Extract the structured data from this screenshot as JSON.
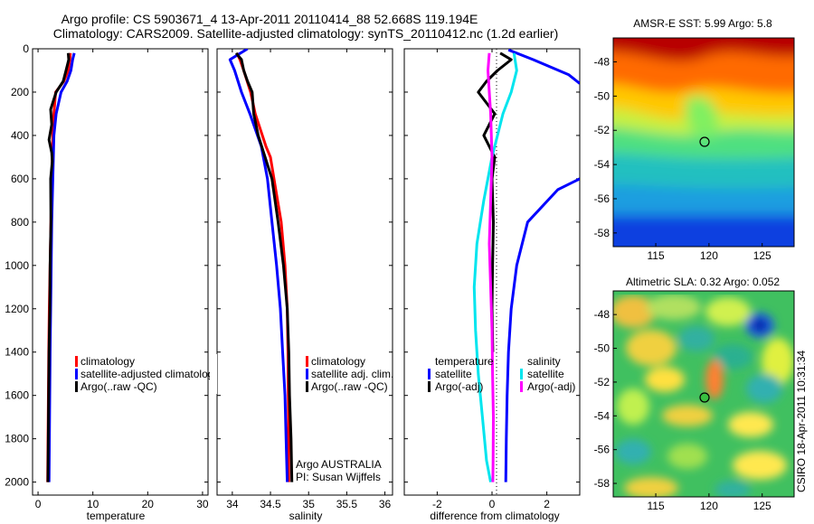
{
  "figure": {
    "title_line1": "Argo profile: CS 5903671_4 13-Apr-2011 20110414_88 52.668S 119.194E",
    "title_line2": "Climatology: CARS2009. Satellite-adjusted climatology: synTS_20110412.nc (1.2d earlier)",
    "side_stamp": "CSIRO 18-Apr-2011 10:31:34",
    "argo_note_line1": "Argo AUSTRALIA",
    "argo_note_line2": "PI: Susan Wijffels"
  },
  "chart_data": [
    {
      "type": "line",
      "name": "temperature",
      "xlabel": "temperature",
      "ylabel": "",
      "xlim": [
        -1,
        31
      ],
      "ylim": [
        2060,
        0
      ],
      "xticks": [
        0,
        10,
        20,
        30
      ],
      "yticks": [
        0,
        200,
        400,
        600,
        800,
        1000,
        1200,
        1400,
        1600,
        1800,
        2000
      ],
      "legend": [
        "climatology",
        "satellite-adjusted climatolog",
        "Argo(..raw -QC)"
      ],
      "series": [
        {
          "name": "climatology",
          "color": "#ff0000",
          "x": [
            5.9,
            5.8,
            5.5,
            4.7,
            3.2,
            2.9,
            2.7,
            2.5,
            2.35,
            2.2,
            2.05,
            1.95,
            1.85,
            1.75
          ],
          "y": [
            20,
            50,
            100,
            150,
            200,
            300,
            400,
            600,
            800,
            1000,
            1200,
            1400,
            1700,
            2000
          ]
        },
        {
          "name": "satellite-adjusted climatolog",
          "color": "#0000ff",
          "x": [
            6.6,
            6.3,
            6.0,
            5.3,
            4.2,
            3.3,
            2.9,
            2.7,
            2.5,
            2.4,
            2.3,
            2.2,
            2.1,
            2.0
          ],
          "y": [
            20,
            50,
            100,
            150,
            200,
            300,
            400,
            600,
            800,
            1000,
            1200,
            1400,
            1700,
            2000
          ]
        },
        {
          "name": "Argo(..raw -QC)",
          "color": "#000000",
          "x": [
            5.5,
            5.6,
            5.1,
            4.6,
            3.3,
            2.3,
            2.5,
            2.0,
            2.5,
            2.6,
            2.3,
            2.35,
            2.2,
            2.15,
            2.0,
            1.9,
            1.8
          ],
          "y": [
            20,
            50,
            100,
            150,
            200,
            280,
            350,
            420,
            480,
            520,
            600,
            800,
            1000,
            1200,
            1400,
            1700,
            2000
          ]
        }
      ]
    },
    {
      "type": "line",
      "name": "salinity",
      "xlabel": "salinity",
      "ylabel": "",
      "xlim": [
        33.8,
        36.1
      ],
      "ylim": [
        2060,
        0
      ],
      "xticks": [
        34,
        34.5,
        35,
        35.5,
        36
      ],
      "yticks": [
        0,
        200,
        400,
        600,
        800,
        1000,
        1200,
        1400,
        1600,
        1800,
        2000
      ],
      "legend": [
        "climatology",
        "satellite adj. clim.",
        "Argo(..raw -QC)"
      ],
      "series": [
        {
          "name": "climatology",
          "color": "#ff0000",
          "x": [
            34.06,
            34.1,
            34.15,
            34.24,
            34.3,
            34.44,
            34.5,
            34.57,
            34.64,
            34.69,
            34.72,
            34.73,
            34.735,
            34.74
          ],
          "y": [
            20,
            50,
            100,
            200,
            300,
            450,
            500,
            650,
            800,
            1000,
            1200,
            1400,
            1700,
            2000
          ]
        },
        {
          "name": "satellite adj. clim.",
          "color": "#0000ff",
          "x": [
            34.2,
            33.97,
            34.03,
            34.12,
            34.23,
            34.38,
            34.46,
            34.52,
            34.58,
            34.63,
            34.66,
            34.69,
            34.705,
            34.72
          ],
          "y": [
            0,
            50,
            100,
            200,
            300,
            450,
            600,
            800,
            1000,
            1200,
            1400,
            1600,
            1800,
            2000
          ]
        },
        {
          "name": "Argo(..raw -QC)",
          "color": "#000000",
          "x": [
            34.05,
            34.12,
            34.15,
            34.2,
            34.26,
            34.28,
            34.34,
            34.43,
            34.52,
            34.6,
            34.67,
            34.72,
            34.74,
            34.75,
            34.77,
            34.78
          ],
          "y": [
            20,
            50,
            100,
            150,
            200,
            300,
            400,
            500,
            600,
            800,
            1000,
            1200,
            1400,
            1600,
            1800,
            2000
          ]
        }
      ]
    },
    {
      "type": "line",
      "name": "difference from climatology",
      "xlabel": "difference from climatology",
      "ylabel": "",
      "xlim": [
        -3.2,
        3.2
      ],
      "ylim": [
        2060,
        0
      ],
      "xticks": [
        -2,
        0,
        2
      ],
      "yticks": [
        0,
        200,
        400,
        600,
        800,
        1000,
        1200,
        1400,
        1600,
        1800,
        2000
      ],
      "legend_groups": [
        {
          "heading": "temperature",
          "items": [
            "satellite",
            "Argo(-adj)"
          ]
        },
        {
          "heading": "salinity",
          "items": [
            "satellite",
            "Argo(-adj)"
          ]
        }
      ],
      "series": [
        {
          "name": "temperature satellite",
          "color": "#0000ff",
          "x": [
            0.6,
            1.5,
            2.8,
            3.2
          ],
          "y": [
            5,
            50,
            120,
            160
          ]
        },
        {
          "name": "temperature satellite lower",
          "color": "#0000ff",
          "x": [
            3.2,
            2.4,
            1.3,
            0.9,
            0.7,
            0.6,
            0.55,
            0.52,
            0.5
          ],
          "y": [
            600,
            650,
            800,
            1000,
            1200,
            1400,
            1600,
            1800,
            2000
          ]
        },
        {
          "name": "temperature Argo(-adj)",
          "color": "#000000",
          "x": [
            0.3,
            0.7,
            0.2,
            -0.2,
            -0.5,
            0.1,
            -0.3,
            0.1,
            0.0,
            0.05,
            0.02,
            0.0,
            0.03
          ],
          "y": [
            20,
            50,
            100,
            150,
            200,
            300,
            400,
            500,
            600,
            800,
            1000,
            1200,
            1400
          ]
        },
        {
          "name": "salinity satellite",
          "color": "#00e5ee",
          "x": [
            0.8,
            0.9,
            0.7,
            0.4,
            0.0,
            -0.3,
            -0.55,
            -0.65,
            -0.6,
            -0.5,
            -0.35,
            -0.2,
            -0.05
          ],
          "y": [
            20,
            100,
            200,
            300,
            500,
            700,
            900,
            1100,
            1300,
            1500,
            1700,
            1900,
            2000
          ]
        },
        {
          "name": "salinity Argo(-adj)",
          "color": "#ff00ff",
          "x": [
            -0.1,
            -0.15,
            -0.1,
            -0.05,
            0.0,
            -0.05,
            -0.1,
            -0.05,
            0.0,
            0.02,
            0.05,
            0.04,
            0.03
          ],
          "y": [
            20,
            100,
            200,
            300,
            500,
            700,
            900,
            1100,
            1300,
            1500,
            1700,
            1900,
            2000
          ]
        }
      ]
    },
    {
      "type": "heatmap",
      "name": "amsr-e-sst",
      "title": "AMSR-E SST: 5.99 Argo: 5.8",
      "xlim": [
        111,
        128
      ],
      "ylim": [
        -58.8,
        -46.6
      ],
      "xticks": [
        115,
        120,
        125
      ],
      "yticks": [
        -48,
        -50,
        -52,
        -54,
        -56,
        -58
      ],
      "marker": {
        "x": 119.194,
        "y": -52.668
      }
    },
    {
      "type": "heatmap",
      "name": "altimetric-sla",
      "title": "Altimetric SLA: 0.32 Argo: 0.052",
      "xlim": [
        111,
        128
      ],
      "ylim": [
        -58.8,
        -46.6
      ],
      "xticks": [
        115,
        120,
        125
      ],
      "yticks": [
        -48,
        -50,
        -52,
        -54,
        -56,
        -58
      ],
      "marker": {
        "x": 119.194,
        "y": -52.668
      }
    }
  ]
}
